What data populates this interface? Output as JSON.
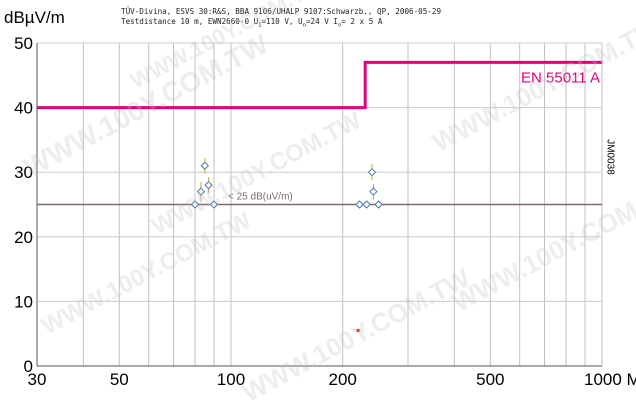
{
  "header": {
    "line1": "TÜV-Divina, ESVS 30:R&S, BBA 9106/UHALP 9107:Schwarzb., QP, 2006-05-29",
    "line2_a": "Testdistance 10 m, EWN2660-0 U",
    "line2_b": "1",
    "line2_c": "=110 V, U",
    "line2_d": "o",
    "line2_e": "=24 V I",
    "line2_f": "o",
    "line2_g": "= 2 x 5 A"
  },
  "side_code": "JM0038",
  "watermark": "WWW.100Y.COM.TW",
  "colors": {
    "limit": "#e0007a",
    "baseline": "#7a6a6a",
    "measure": "#4a78b8",
    "grid_v": "#cbbcbc",
    "grid_h": "#cccccc"
  },
  "chart_data": {
    "type": "line",
    "ylabel": "dBµV/m",
    "xlabel": "",
    "x_scale": "log",
    "xlim": [
      30,
      1000
    ],
    "ylim": [
      0,
      50
    ],
    "x_ticks": [
      30,
      50,
      100,
      200,
      500,
      1000
    ],
    "x_tick_labels": [
      "30",
      "50",
      "100",
      "200",
      "500",
      "1000 MHz"
    ],
    "y_ticks": [
      0,
      10,
      20,
      30,
      40,
      50
    ],
    "y_tick_labels": [
      "0",
      "10",
      "20",
      "30",
      "40",
      "50"
    ],
    "grid": true,
    "series": [
      {
        "name": "EN 55011 A",
        "points": [
          [
            30,
            40
          ],
          [
            230,
            40
          ],
          [
            230,
            47
          ],
          [
            1000,
            47
          ]
        ]
      }
    ],
    "baseline": {
      "label": "< 25 dB(uV/m)",
      "y": 25
    },
    "measurements": [
      {
        "x": 83,
        "y": 27,
        "err": 1.5
      },
      {
        "x": 85,
        "y": 31,
        "err": 1.2
      },
      {
        "x": 87,
        "y": 28,
        "err": 1.2
      },
      {
        "x": 240,
        "y": 30,
        "err": 1.2
      },
      {
        "x": 242,
        "y": 27,
        "err": 1.2
      }
    ],
    "baseline_markers": [
      80,
      90,
      222,
      232,
      250
    ],
    "outlier": {
      "x": 220,
      "y": 5.5
    }
  }
}
